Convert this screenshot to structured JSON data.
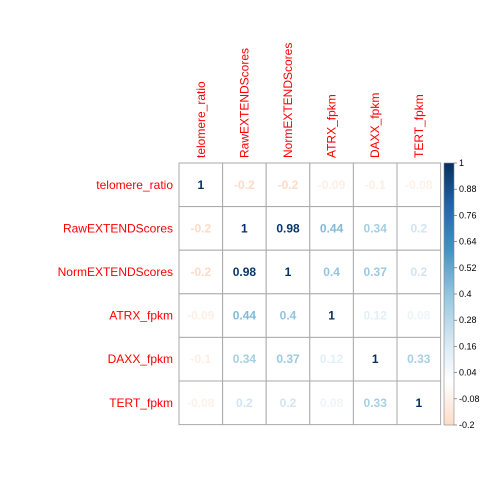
{
  "chart_data": {
    "type": "heatmap",
    "variables": [
      "telomere_ratio",
      "RawEXTENDScores",
      "NormEXTENDScores",
      "ATRX_fpkm",
      "DAXX_fpkm",
      "TERT_fpkm"
    ],
    "matrix": [
      [
        1,
        -0.2,
        -0.2,
        -0.09,
        -0.1,
        -0.08
      ],
      [
        -0.2,
        1,
        0.98,
        0.44,
        0.34,
        0.2
      ],
      [
        -0.2,
        0.98,
        1,
        0.4,
        0.37,
        0.2
      ],
      [
        -0.09,
        0.44,
        0.4,
        1,
        0.12,
        0.08
      ],
      [
        -0.1,
        0.34,
        0.37,
        0.12,
        1,
        0.33
      ],
      [
        -0.08,
        0.2,
        0.2,
        0.08,
        0.33,
        1
      ]
    ],
    "colorbar": {
      "range": [
        -0.2,
        1
      ],
      "ticks": [
        "1",
        "0.88",
        "0.76",
        "0.64",
        "0.52",
        "0.4",
        "0.28",
        "0.16",
        "0.04",
        "-0.08",
        "-0.2"
      ]
    },
    "colors": {
      "label": "#ff0000",
      "grid": "#aaaaaa",
      "scale": [
        "#67001F",
        "#B2182B",
        "#D6604D",
        "#F4A582",
        "#FDDBC7",
        "#FFFFFF",
        "#D1E5F0",
        "#92C5DE",
        "#4393C3",
        "#2166AC",
        "#053061"
      ]
    }
  }
}
